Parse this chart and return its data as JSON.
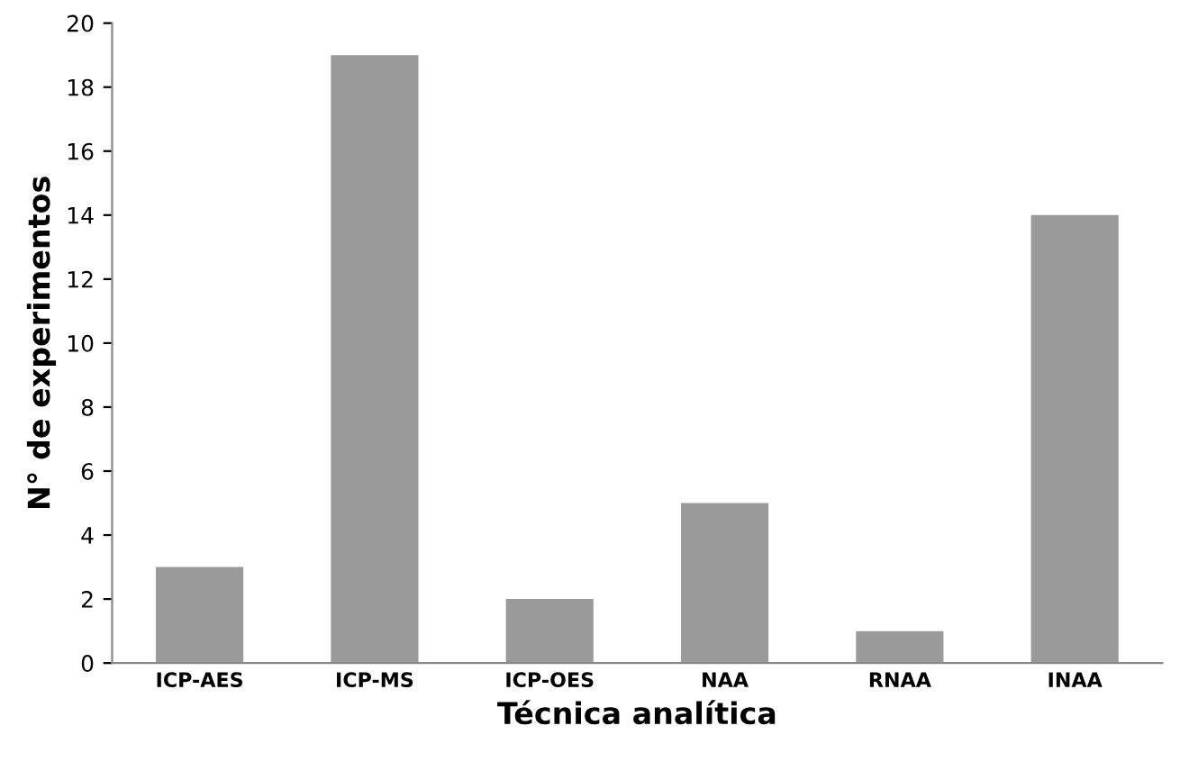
{
  "chart_data": {
    "type": "bar",
    "xlabel": "Técnica analítica",
    "ylabel": "N° de experimentos",
    "categories": [
      "ICP-AES",
      "ICP-MS",
      "ICP-OES",
      "NAA",
      "RNAA",
      "INAA"
    ],
    "values": [
      3,
      19,
      2,
      5,
      1,
      14
    ],
    "color": "#9a9a9a",
    "ylim": [
      0,
      20
    ],
    "yticks": [
      0,
      2,
      4,
      6,
      8,
      10,
      12,
      14,
      16,
      18,
      20
    ],
    "grid": false,
    "legend": false
  }
}
